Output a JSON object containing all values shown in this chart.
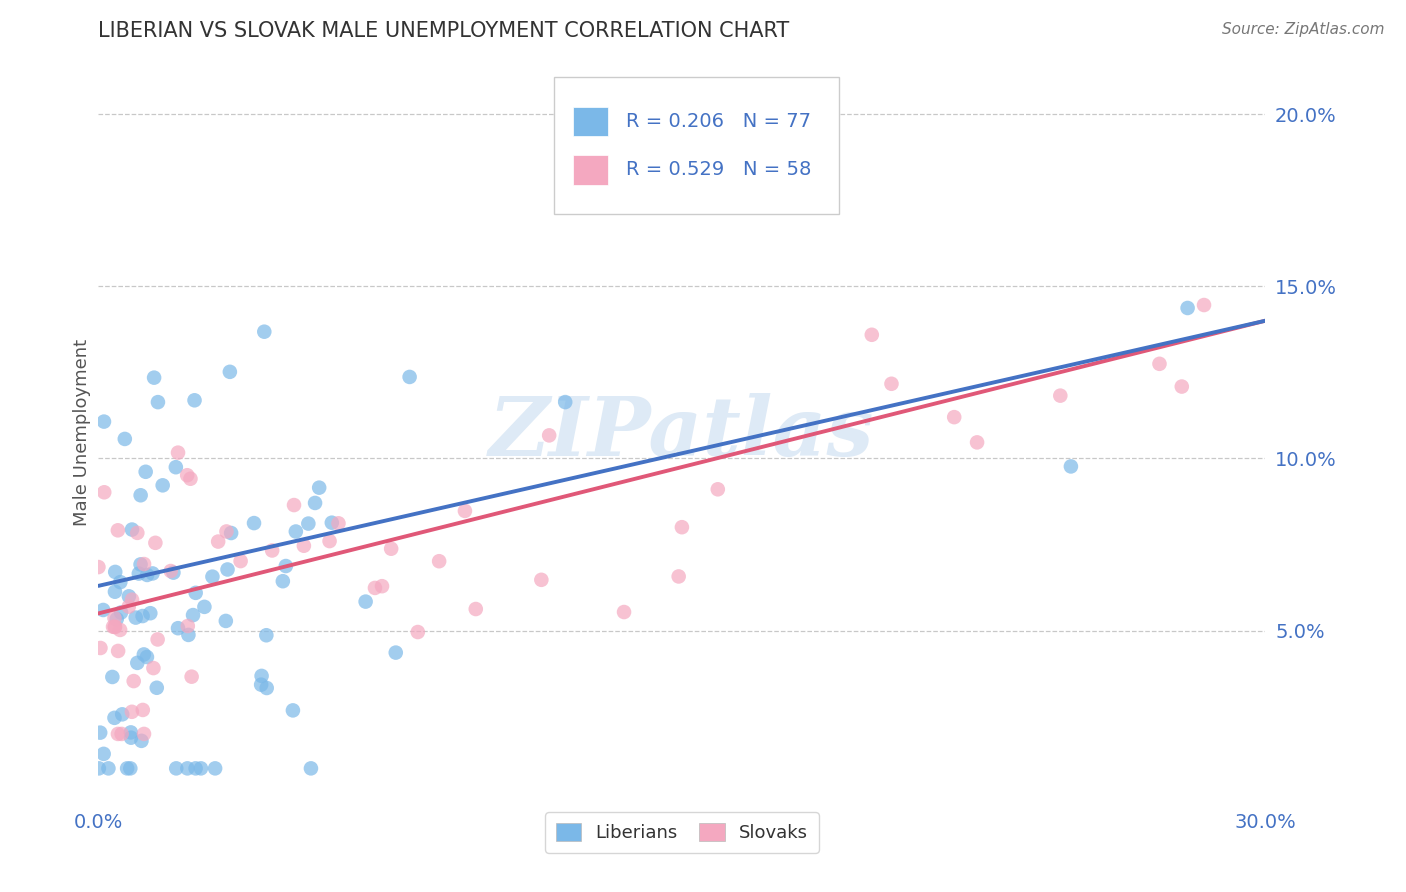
{
  "title": "LIBERIAN VS SLOVAK MALE UNEMPLOYMENT CORRELATION CHART",
  "source_text": "Source: ZipAtlas.com",
  "ylabel": "Male Unemployment",
  "xlim": [
    0.0,
    0.3
  ],
  "ylim": [
    0.0,
    0.215
  ],
  "yticks": [
    0.05,
    0.1,
    0.15,
    0.2
  ],
  "ytick_labels": [
    "5.0%",
    "10.0%",
    "15.0%",
    "20.0%"
  ],
  "xticks": [
    0.0,
    0.3
  ],
  "xtick_labels": [
    "0.0%",
    "30.0%"
  ],
  "liberian_R": 0.206,
  "liberian_N": 77,
  "slovak_R": 0.529,
  "slovak_N": 58,
  "liberian_color": "#7BB8E8",
  "slovak_color": "#F4A8C0",
  "liberian_line_color": "#4472C4",
  "slovak_line_color": "#E05878",
  "tick_color": "#4472C4",
  "grid_color": "#BBBBBB",
  "watermark": "ZIPatlas",
  "legend_label_liberian": "Liberians",
  "legend_label_slovak": "Slovaks",
  "lib_line_start_y": 0.063,
  "lib_line_end_y": 0.14,
  "slo_line_start_y": 0.055,
  "slo_line_end_y": 0.14
}
